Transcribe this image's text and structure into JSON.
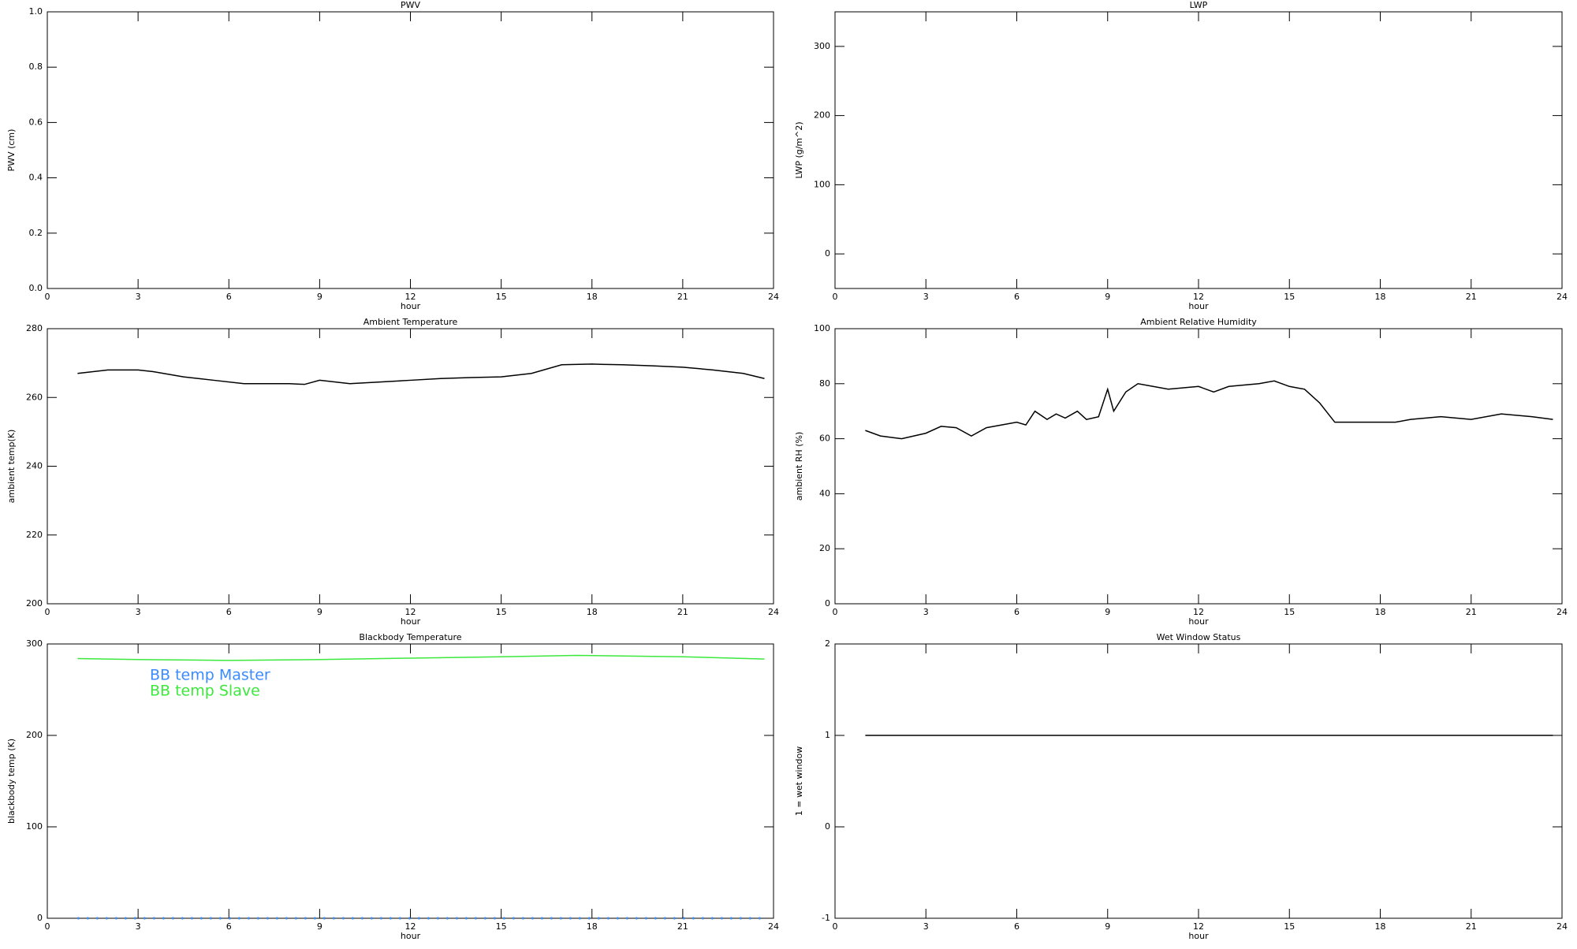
{
  "chart_data": [
    {
      "type": "line",
      "title": "PWV",
      "xlabel": "hour",
      "ylabel": "PWV (cm)",
      "xlim": [
        0,
        24
      ],
      "xticks": [
        0,
        3,
        6,
        9,
        12,
        15,
        18,
        21,
        24
      ],
      "ylim": [
        0,
        1
      ],
      "yticks": [
        {
          "value": 0,
          "label": "0.0"
        },
        0.2,
        0.4,
        0.6,
        0.8,
        {
          "value": 1,
          "label": "1.0"
        }
      ],
      "x": [],
      "series": []
    },
    {
      "type": "line",
      "title": "LWP",
      "xlabel": "hour",
      "ylabel": "LWP (g/m^2)",
      "xlim": [
        0,
        24
      ],
      "xticks": [
        0,
        3,
        6,
        9,
        12,
        15,
        18,
        21,
        24
      ],
      "ylim": [
        -50,
        350
      ],
      "yticks": [
        0,
        100,
        200,
        300
      ],
      "x": [],
      "series": []
    },
    {
      "type": "line",
      "title": "Ambient Temperature",
      "xlabel": "hour",
      "ylabel": "ambient temp(K)",
      "xlim": [
        0,
        24
      ],
      "xticks": [
        0,
        3,
        6,
        9,
        12,
        15,
        18,
        21,
        24
      ],
      "ylim": [
        200,
        280
      ],
      "yticks": [
        200,
        220,
        240,
        260,
        280
      ],
      "x": [
        1,
        2,
        3,
        3.5,
        4.5,
        5.5,
        6.5,
        8,
        8.5,
        9,
        10,
        11,
        12,
        13,
        14,
        15,
        16,
        17,
        18,
        19,
        20,
        21,
        22,
        23,
        23.7
      ],
      "series": [
        {
          "color": "#000000",
          "values": [
            267,
            268,
            268,
            267.5,
            266,
            265,
            264,
            264,
            263.8,
            265,
            264,
            264.5,
            265,
            265.5,
            265.8,
            266,
            267,
            269.5,
            269.7,
            269.5,
            269.2,
            268.8,
            268,
            267,
            265.5
          ]
        }
      ]
    },
    {
      "type": "line",
      "title": "Ambient Relative Humidity",
      "xlabel": "hour",
      "ylabel": "ambient RH (%)",
      "xlim": [
        0,
        24
      ],
      "xticks": [
        0,
        3,
        6,
        9,
        12,
        15,
        18,
        21,
        24
      ],
      "ylim": [
        0,
        100
      ],
      "yticks": [
        0,
        20,
        40,
        60,
        80,
        100
      ],
      "x": [
        1,
        1.5,
        2.2,
        3,
        3.5,
        4,
        4.5,
        5,
        5.5,
        6,
        6.3,
        6.6,
        7,
        7.3,
        7.6,
        8,
        8.3,
        8.7,
        9,
        9.2,
        9.6,
        10,
        10.5,
        11,
        12,
        12.5,
        13,
        14,
        14.5,
        15,
        15.5,
        16,
        16.5,
        17,
        18,
        18.5,
        19,
        20,
        21,
        22,
        23,
        23.7
      ],
      "series": [
        {
          "color": "#000000",
          "values": [
            63,
            61,
            60,
            62,
            64.5,
            64,
            61,
            64,
            65,
            66,
            65,
            70,
            67,
            69,
            67.5,
            70,
            67,
            68,
            78,
            70,
            77,
            80,
            79,
            78,
            79,
            77,
            79,
            80,
            81,
            79,
            78,
            73,
            66,
            66,
            66,
            66,
            67,
            68,
            67,
            69,
            68,
            67
          ]
        }
      ]
    },
    {
      "type": "line",
      "title": "Blackbody Temperature",
      "xlabel": "hour",
      "ylabel": "blackbody temp (K)",
      "xlim": [
        0,
        24
      ],
      "xticks": [
        0,
        3,
        6,
        9,
        12,
        15,
        18,
        21,
        24
      ],
      "ylim": [
        0,
        300
      ],
      "yticks": [
        0,
        100,
        200,
        300
      ],
      "x": [
        1,
        3,
        6,
        9,
        12,
        15,
        17.5,
        21,
        23.7
      ],
      "series": [
        {
          "name": "BB temp Master",
          "color": "#3b8bff",
          "values": [
            0,
            0,
            0,
            0,
            0,
            0,
            0,
            0,
            0
          ]
        },
        {
          "name": "BB temp Slave",
          "color": "#3de83d",
          "values": [
            284,
            283,
            282,
            283,
            284.5,
            286,
            287.5,
            286,
            283.5
          ]
        }
      ]
    },
    {
      "type": "line",
      "title": "Wet Window Status",
      "xlabel": "hour",
      "ylabel": "1 = wet window",
      "xlim": [
        0,
        24
      ],
      "xticks": [
        0,
        3,
        6,
        9,
        12,
        15,
        18,
        21,
        24
      ],
      "ylim": [
        -1,
        2
      ],
      "yticks": [
        -1,
        0,
        1,
        2
      ],
      "x": [
        1,
        23.7
      ],
      "series": [
        {
          "color": "#000000",
          "values": [
            1,
            1
          ]
        }
      ]
    }
  ]
}
